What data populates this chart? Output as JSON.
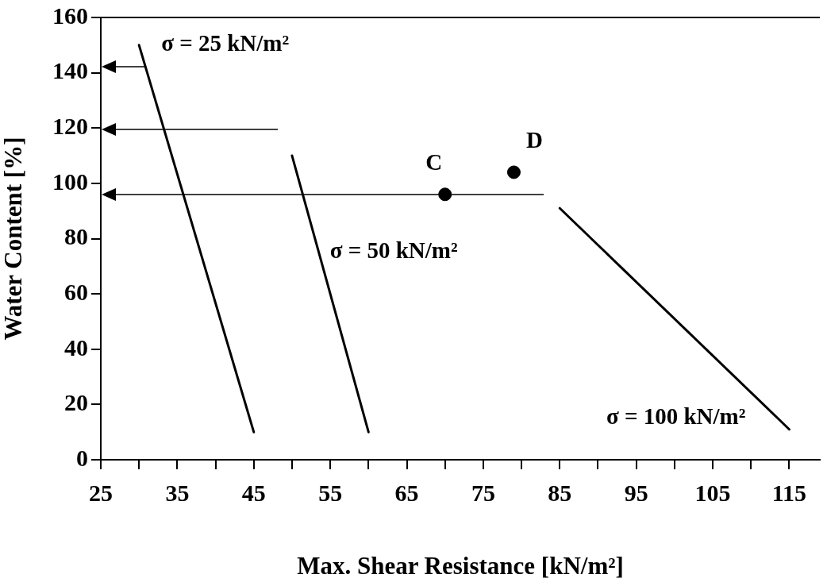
{
  "chart_data": {
    "type": "line",
    "xlabel": "Max. Shear Resistance [kN/m²]",
    "ylabel": "Water Content [%]",
    "xlim": [
      25,
      119
    ],
    "ylim": [
      0,
      160
    ],
    "xticks": [
      25,
      {
        "value": 30,
        "label": null
      },
      35,
      {
        "value": 40,
        "label": null
      },
      45,
      {
        "value": 50,
        "label": null
      },
      55,
      {
        "value": 60,
        "label": null
      },
      65,
      {
        "value": 70,
        "label": null
      },
      75,
      {
        "value": 80,
        "label": null
      },
      85,
      {
        "value": 90,
        "label": null
      },
      95,
      {
        "value": 100,
        "label": null
      },
      105,
      {
        "value": 110,
        "label": null
      },
      115
    ],
    "yticks": [
      0,
      20,
      40,
      60,
      80,
      100,
      120,
      140,
      160
    ],
    "grid": false,
    "legend": false,
    "marker": "none",
    "line_style": "solid",
    "series": [
      {
        "name": "σ = 25 kN/m²",
        "color": "#000000",
        "x": [
          30,
          45
        ],
        "values": [
          150,
          10
        ]
      },
      {
        "name": "σ = 50 kN/m²",
        "color": "#000000",
        "x": [
          50,
          60
        ],
        "values": [
          110,
          10
        ]
      },
      {
        "name": "σ = 100 kN/m²",
        "color": "#000000",
        "x": [
          85,
          115
        ],
        "values": [
          91,
          11
        ]
      },
      {
        "type": "scatter",
        "name": "C",
        "color": "#000000",
        "marker": "circle",
        "x": [
          70
        ],
        "values": [
          96
        ]
      },
      {
        "type": "scatter",
        "name": "D",
        "color": "#000000",
        "marker": "circle",
        "x": [
          79
        ],
        "values": [
          104
        ]
      }
    ]
  }
}
